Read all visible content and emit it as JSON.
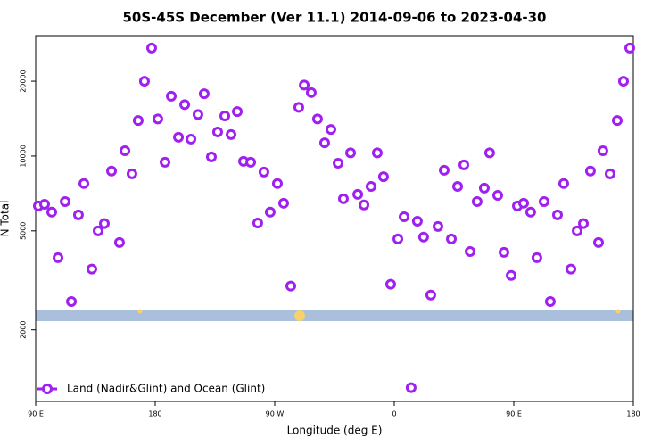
{
  "chart_data": {
    "type": "scatter",
    "title": "50S-45S December (Ver 11.1)   2014-09-06 to 2023-04-30",
    "x_label": "Longitude (deg E)",
    "y_label": "N Total",
    "log_y": true,
    "legend": "bottom-left",
    "xlim": [
      90,
      540
    ],
    "xticks": [
      {
        "value": 90,
        "label": "90 E"
      },
      180,
      {
        "value": 270,
        "label": "90 W"
      },
      {
        "value": 360,
        "label": "0"
      },
      {
        "value": 450,
        "label": "90 E"
      },
      {
        "value": 540,
        "label": "180"
      }
    ],
    "ylim": [
      1030,
      30500
    ],
    "yticks": [
      2000,
      5000,
      10000,
      20000
    ],
    "series": [
      {
        "name": "Land (Nadir&Glint) and Ocean (Glint)",
        "color": "#a020f0",
        "x": [
          92.0,
          96.7,
          102.1,
          106.8,
          112.2,
          116.9,
          122.2,
          126.3,
          132.3,
          137.0,
          141.7,
          147.1,
          153.1,
          157.2,
          162.5,
          167.2,
          171.9,
          177.3,
          182.0,
          187.4,
          192.1,
          197.5,
          202.2,
          206.9,
          212.2,
          216.9,
          222.3,
          227.0,
          232.4,
          237.1,
          241.8,
          246.5,
          251.9,
          257.2,
          261.9,
          266.6,
          272.0,
          276.7,
          282.1,
          288.1,
          292.2,
          297.5,
          302.2,
          307.6,
          312.3,
          317.7,
          321.7,
          327.1,
          332.5,
          337.2,
          342.5,
          347.2,
          351.9,
          357.3,
          362.7,
          367.4,
          372.7,
          377.4,
          382.1,
          387.5,
          392.9,
          397.6,
          403.0,
          407.7,
          412.4,
          417.1,
          422.4,
          427.8,
          431.8,
          437.9,
          442.6,
          448.0,
          452.7,
          457.4,
          462.7,
          467.4,
          472.8,
          477.5,
          482.9,
          487.6,
          493.0,
          497.7,
          502.4,
          507.7,
          513.8,
          517.1,
          522.5,
          527.9,
          532.6,
          537.3
        ],
        "values": [
          6300,
          6400,
          5950,
          3900,
          6560,
          2600,
          5800,
          7750,
          3510,
          5000,
          5350,
          8700,
          4490,
          10500,
          8480,
          13900,
          20000,
          27200,
          14100,
          9440,
          17400,
          11900,
          16100,
          11700,
          14700,
          17800,
          9920,
          12500,
          14500,
          12200,
          15100,
          9520,
          9440,
          5380,
          8620,
          5950,
          7750,
          6460,
          3000,
          15700,
          19300,
          18000,
          14100,
          11300,
          12800,
          9360,
          6730,
          10300,
          7010,
          6360,
          7550,
          10300,
          8260,
          3050,
          4640,
          5700,
          1170,
          5470,
          4720,
          2760,
          5210,
          8770,
          4640,
          7550,
          9210,
          4130,
          6560,
          7430,
          10300,
          6950,
          4100,
          3310,
          6300,
          6460,
          5950,
          3900,
          6560,
          2600,
          5800,
          7750,
          3510,
          5000,
          5350,
          8700,
          4490,
          10500,
          8480,
          13900,
          20000,
          27200
        ]
      }
    ]
  }
}
